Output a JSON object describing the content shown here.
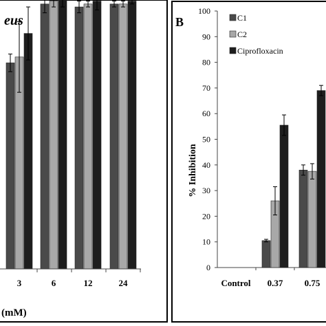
{
  "colors": {
    "background": "#ffffff",
    "frame": "#000000",
    "series": [
      "#4a4a4a",
      "#a8a8a8",
      "#1e1e1e"
    ]
  },
  "chart_data": [
    {
      "panel_letter": "",
      "type": "bar",
      "title": "eus",
      "xlabel": "(mM)",
      "ylabel": "",
      "categories": [
        "3",
        "6",
        "12",
        "24"
      ],
      "ylim": [
        0,
        100
      ],
      "series": [
        {
          "name": "",
          "values": [
            70,
            90,
            89,
            90
          ],
          "errors": [
            3,
            3,
            2,
            1
          ]
        },
        {
          "name": "",
          "values": [
            72,
            91,
            90,
            90
          ],
          "errors": [
            12,
            2,
            1,
            1
          ]
        },
        {
          "name": "",
          "values": [
            80,
            92,
            91,
            91
          ],
          "errors": [
            9,
            3,
            3,
            1
          ]
        }
      ]
    },
    {
      "panel_letter": "B",
      "type": "bar",
      "title": "",
      "xlabel": "",
      "ylabel": "% Inhibition",
      "categories": [
        "Control",
        "0.37",
        "0.75"
      ],
      "ylim": [
        0,
        100
      ],
      "yticks": [
        0,
        10,
        20,
        30,
        40,
        50,
        60,
        70,
        80,
        90,
        100
      ],
      "legend_position": "top-left",
      "series": [
        {
          "name": "C1",
          "values": [
            0,
            10.5,
            38
          ],
          "errors": [
            0,
            0.5,
            2
          ]
        },
        {
          "name": "C2",
          "values": [
            0,
            26,
            37.5
          ],
          "errors": [
            0,
            5.5,
            3
          ]
        },
        {
          "name": "Ciprofloxacin",
          "values": [
            0,
            55.5,
            69
          ],
          "errors": [
            0,
            4,
            2
          ]
        }
      ]
    }
  ]
}
